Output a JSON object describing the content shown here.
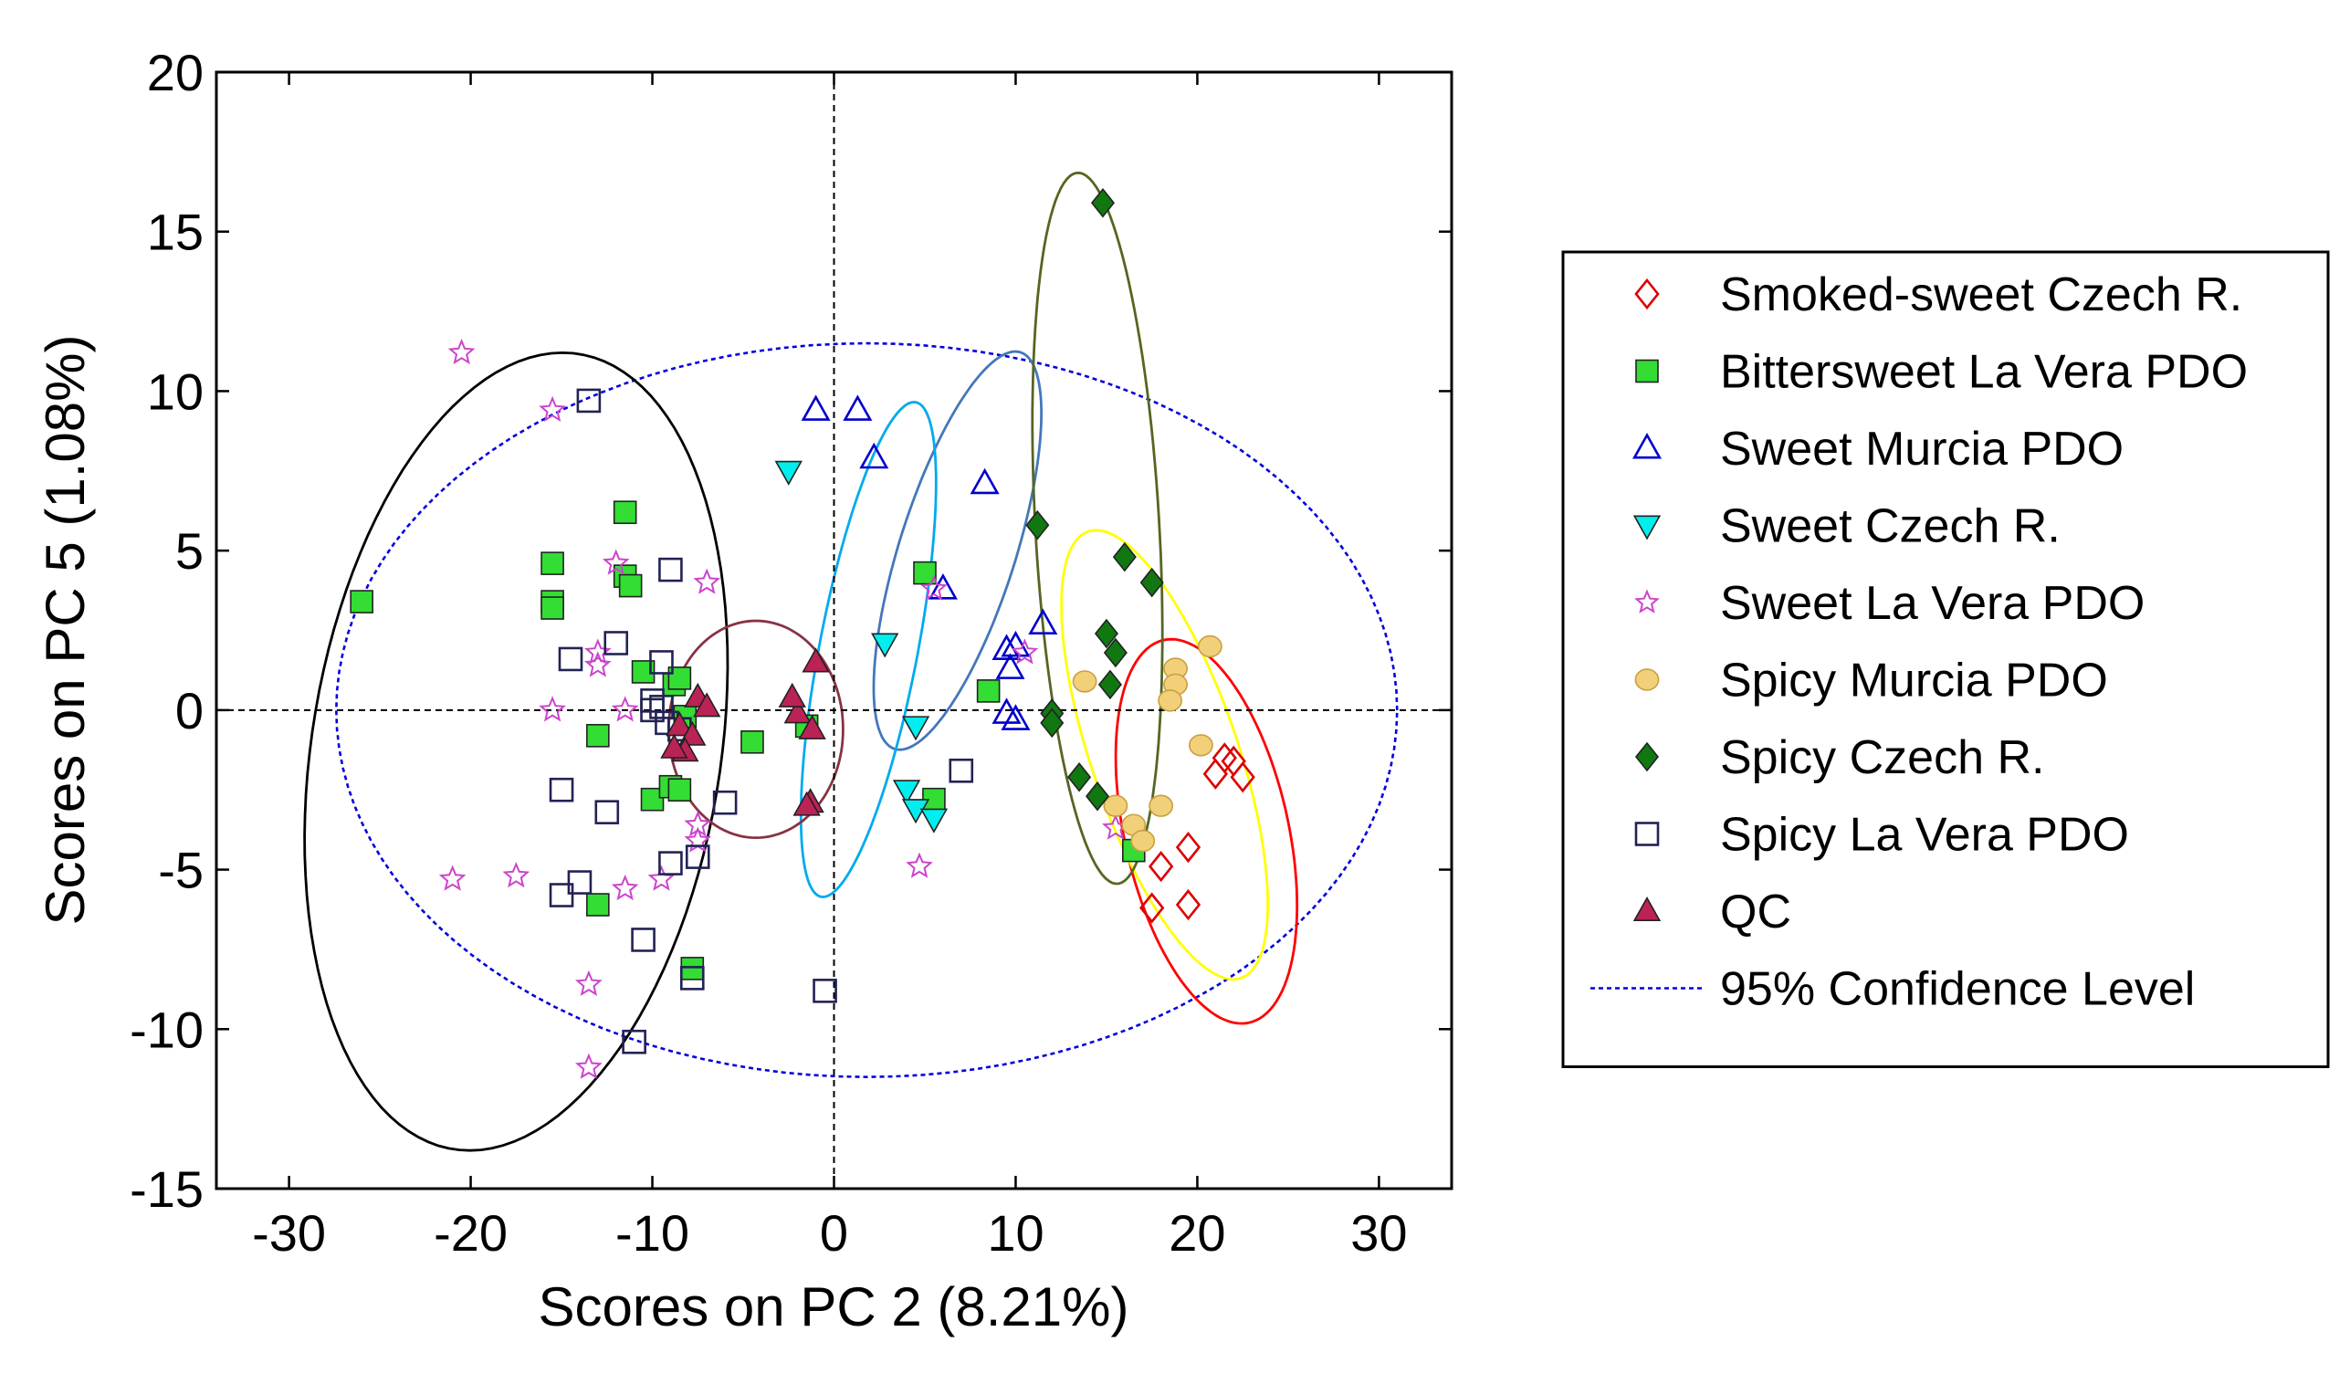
{
  "chart_data": {
    "type": "scatter",
    "title": "",
    "xlabel": "Scores on PC 2 (8.21%)",
    "ylabel": "Scores on PC 5 (1.08%)",
    "xlim": [
      -34,
      34
    ],
    "ylim": [
      -15,
      20
    ],
    "xticks": [
      -30,
      -20,
      -10,
      0,
      10,
      20,
      30
    ],
    "yticks": [
      -15,
      -10,
      -5,
      0,
      5,
      10,
      15,
      20
    ],
    "xtick_labels": [
      "-30",
      "-20",
      "-10",
      "0",
      "10",
      "20",
      "30"
    ],
    "ytick_labels": [
      "-15",
      "-10",
      "-5",
      "0",
      "5",
      "10",
      "15",
      "20"
    ],
    "grid": false,
    "legend_position": "right",
    "confidence_level": {
      "name": "95% Confidence Level",
      "cx": 1.8,
      "cy": 0,
      "rx": 29.2,
      "ry": 11.5,
      "color": "#0000dd"
    },
    "series": [
      {
        "name": "Smoked-sweet Czech R.",
        "marker": "diamond-open",
        "color": "#dd0000",
        "points": [
          [
            21.5,
            -1.5
          ],
          [
            22,
            -1.6
          ],
          [
            22.5,
            -2.1
          ],
          [
            21,
            -2
          ],
          [
            19.5,
            -4.3
          ],
          [
            18,
            -4.9
          ],
          [
            17.5,
            -6.2
          ],
          [
            19.5,
            -6.1
          ]
        ],
        "ellipse": {
          "cx": 20.5,
          "cy": -3.8,
          "rx": 4.2,
          "ry": 6.6,
          "angle": 32,
          "color": "#ff0000"
        }
      },
      {
        "name": "Bittersweet La Vera PDO",
        "marker": "square-filled",
        "color": "#33dd33",
        "points": [
          [
            -26,
            3.4
          ],
          [
            -15.5,
            4.6
          ],
          [
            -15.5,
            3.4
          ],
          [
            -15.5,
            3.2
          ],
          [
            -11.5,
            6.2
          ],
          [
            -11.5,
            4.2
          ],
          [
            -11.2,
            3.9
          ],
          [
            -10.5,
            1.2
          ],
          [
            -8.8,
            0.8
          ],
          [
            -8.5,
            1
          ],
          [
            -8.2,
            -0.2
          ],
          [
            -13,
            -0.8
          ],
          [
            -10,
            -2.8
          ],
          [
            -9,
            -2.4
          ],
          [
            -8.5,
            -2.5
          ],
          [
            -13,
            -6.1
          ],
          [
            -7.8,
            -8.1
          ],
          [
            -4.5,
            -1
          ],
          [
            -1.5,
            -0.5
          ],
          [
            5,
            4.3
          ],
          [
            8.5,
            0.6
          ],
          [
            5.5,
            -2.8
          ],
          [
            16.5,
            -4.4
          ]
        ],
        "ellipse": {
          "cx": -17.5,
          "cy": -1.3,
          "rx": 10.6,
          "ry": 13.4,
          "angle": -36,
          "color": "#000000"
        }
      },
      {
        "name": "Sweet Murcia PDO",
        "marker": "triangle-up-open",
        "color": "#0000cc",
        "points": [
          [
            -1,
            9.4
          ],
          [
            1.3,
            9.4
          ],
          [
            2.2,
            7.9
          ],
          [
            8.3,
            7.1
          ],
          [
            6,
            3.8
          ],
          [
            9.5,
            1.9
          ],
          [
            10,
            2
          ],
          [
            9.7,
            1.3
          ],
          [
            11.5,
            2.7
          ],
          [
            9.5,
            -0.1
          ],
          [
            10,
            -0.3
          ]
        ],
        "ellipse": {
          "cx": 6.8,
          "cy": 5,
          "rx": 2.9,
          "ry": 7.2,
          "angle": -33,
          "color": "#4477bb"
        }
      },
      {
        "name": "Sweet Czech R.",
        "marker": "triangle-down-filled",
        "color": "#00eeee",
        "points": [
          [
            -2.5,
            7.5
          ],
          [
            2.8,
            2.1
          ],
          [
            4.5,
            -0.5
          ],
          [
            4,
            -2.5
          ],
          [
            4.5,
            -3.1
          ],
          [
            5.5,
            -3.4
          ]
        ],
        "ellipse": {
          "cx": 1.9,
          "cy": 1.9,
          "rx": 2.6,
          "ry": 8.2,
          "angle": -20,
          "color": "#00aaee"
        }
      },
      {
        "name": "Sweet La Vera PDO",
        "marker": "star-open",
        "color": "#cc44cc",
        "points": [
          [
            -20.5,
            11.2
          ],
          [
            -15.5,
            9.4
          ],
          [
            -12,
            4.6
          ],
          [
            -13,
            1.8
          ],
          [
            -13,
            1.4
          ],
          [
            -7,
            4
          ],
          [
            -15.5,
            0
          ],
          [
            -11.5,
            0
          ],
          [
            -7.5,
            -3.6
          ],
          [
            -7.5,
            -4.1
          ],
          [
            -21,
            -5.3
          ],
          [
            -17.5,
            -5.2
          ],
          [
            -11.5,
            -5.6
          ],
          [
            -9.5,
            -5.3
          ],
          [
            -13.5,
            -8.6
          ],
          [
            -13.5,
            -11.2
          ],
          [
            5.5,
            3.8
          ],
          [
            10.5,
            1.8
          ],
          [
            4.7,
            -4.9
          ],
          [
            15.5,
            -3.7
          ]
        ],
        "ellipse": null
      },
      {
        "name": "Spicy Murcia PDO",
        "marker": "circle-filled",
        "color": "#f2d07a",
        "points": [
          [
            13.8,
            0.9
          ],
          [
            18.8,
            1.3
          ],
          [
            18.8,
            0.8
          ],
          [
            18.5,
            0.3
          ],
          [
            20.7,
            2
          ],
          [
            20.2,
            -1.1
          ],
          [
            15.5,
            -3
          ],
          [
            18,
            -3
          ],
          [
            16.5,
            -3.6
          ],
          [
            17,
            -4.1
          ]
        ],
        "ellipse": {
          "cx": 18.2,
          "cy": -1.4,
          "rx": 3.6,
          "ry": 8.3,
          "angle": 36,
          "color": "#ffff00"
        }
      },
      {
        "name": "Spicy Czech R.",
        "marker": "diamond-filled",
        "color": "#117711",
        "points": [
          [
            14.8,
            15.9
          ],
          [
            11.2,
            5.8
          ],
          [
            16,
            4.8
          ],
          [
            17.5,
            4
          ],
          [
            15,
            2.4
          ],
          [
            15.5,
            1.8
          ],
          [
            15.2,
            0.8
          ],
          [
            12,
            -0.1
          ],
          [
            12,
            -0.4
          ],
          [
            13.5,
            -2.1
          ],
          [
            14.5,
            -2.7
          ]
        ],
        "ellipse": {
          "cx": 14.5,
          "cy": 5.7,
          "rx": 3.4,
          "ry": 11.2,
          "angle": 6,
          "color": "#556622"
        }
      },
      {
        "name": "Spicy La Vera PDO",
        "marker": "square-open",
        "color": "#222255",
        "points": [
          [
            -13.5,
            9.7
          ],
          [
            -9,
            4.4
          ],
          [
            -14.5,
            1.6
          ],
          [
            -12,
            2.1
          ],
          [
            -9.5,
            1.5
          ],
          [
            -10,
            0.3
          ],
          [
            -10,
            0
          ],
          [
            -9.5,
            0.1
          ],
          [
            -9.2,
            -0.4
          ],
          [
            -8.5,
            -0.6
          ],
          [
            -15,
            -2.5
          ],
          [
            -12.5,
            -3.2
          ],
          [
            -6,
            -2.9
          ],
          [
            -9,
            -4.8
          ],
          [
            -7.5,
            -4.6
          ],
          [
            -14,
            -5.4
          ],
          [
            -15,
            -5.8
          ],
          [
            -10.5,
            -7.2
          ],
          [
            -7.8,
            -8.4
          ],
          [
            -11,
            -10.4
          ],
          [
            7,
            -1.9
          ],
          [
            -0.5,
            -8.8
          ]
        ],
        "ellipse": null
      },
      {
        "name": "QC",
        "marker": "triangle-up-filled",
        "color": "#bb2255",
        "points": [
          [
            -7.5,
            0.4
          ],
          [
            -7,
            0.1
          ],
          [
            -8.5,
            -0.5
          ],
          [
            -7.8,
            -0.8
          ],
          [
            -8.2,
            -1.3
          ],
          [
            -8.8,
            -1.2
          ],
          [
            -2,
            -0.1
          ],
          [
            -2.3,
            0.4
          ],
          [
            -1.2,
            -0.6
          ],
          [
            -1,
            1.5
          ],
          [
            -1.3,
            -2.9
          ],
          [
            -1.5,
            -3
          ]
        ],
        "ellipse": {
          "cx": -4.3,
          "cy": -0.6,
          "rx": 4.8,
          "ry": 3.4,
          "angle": 0,
          "color": "#883344"
        }
      }
    ]
  }
}
